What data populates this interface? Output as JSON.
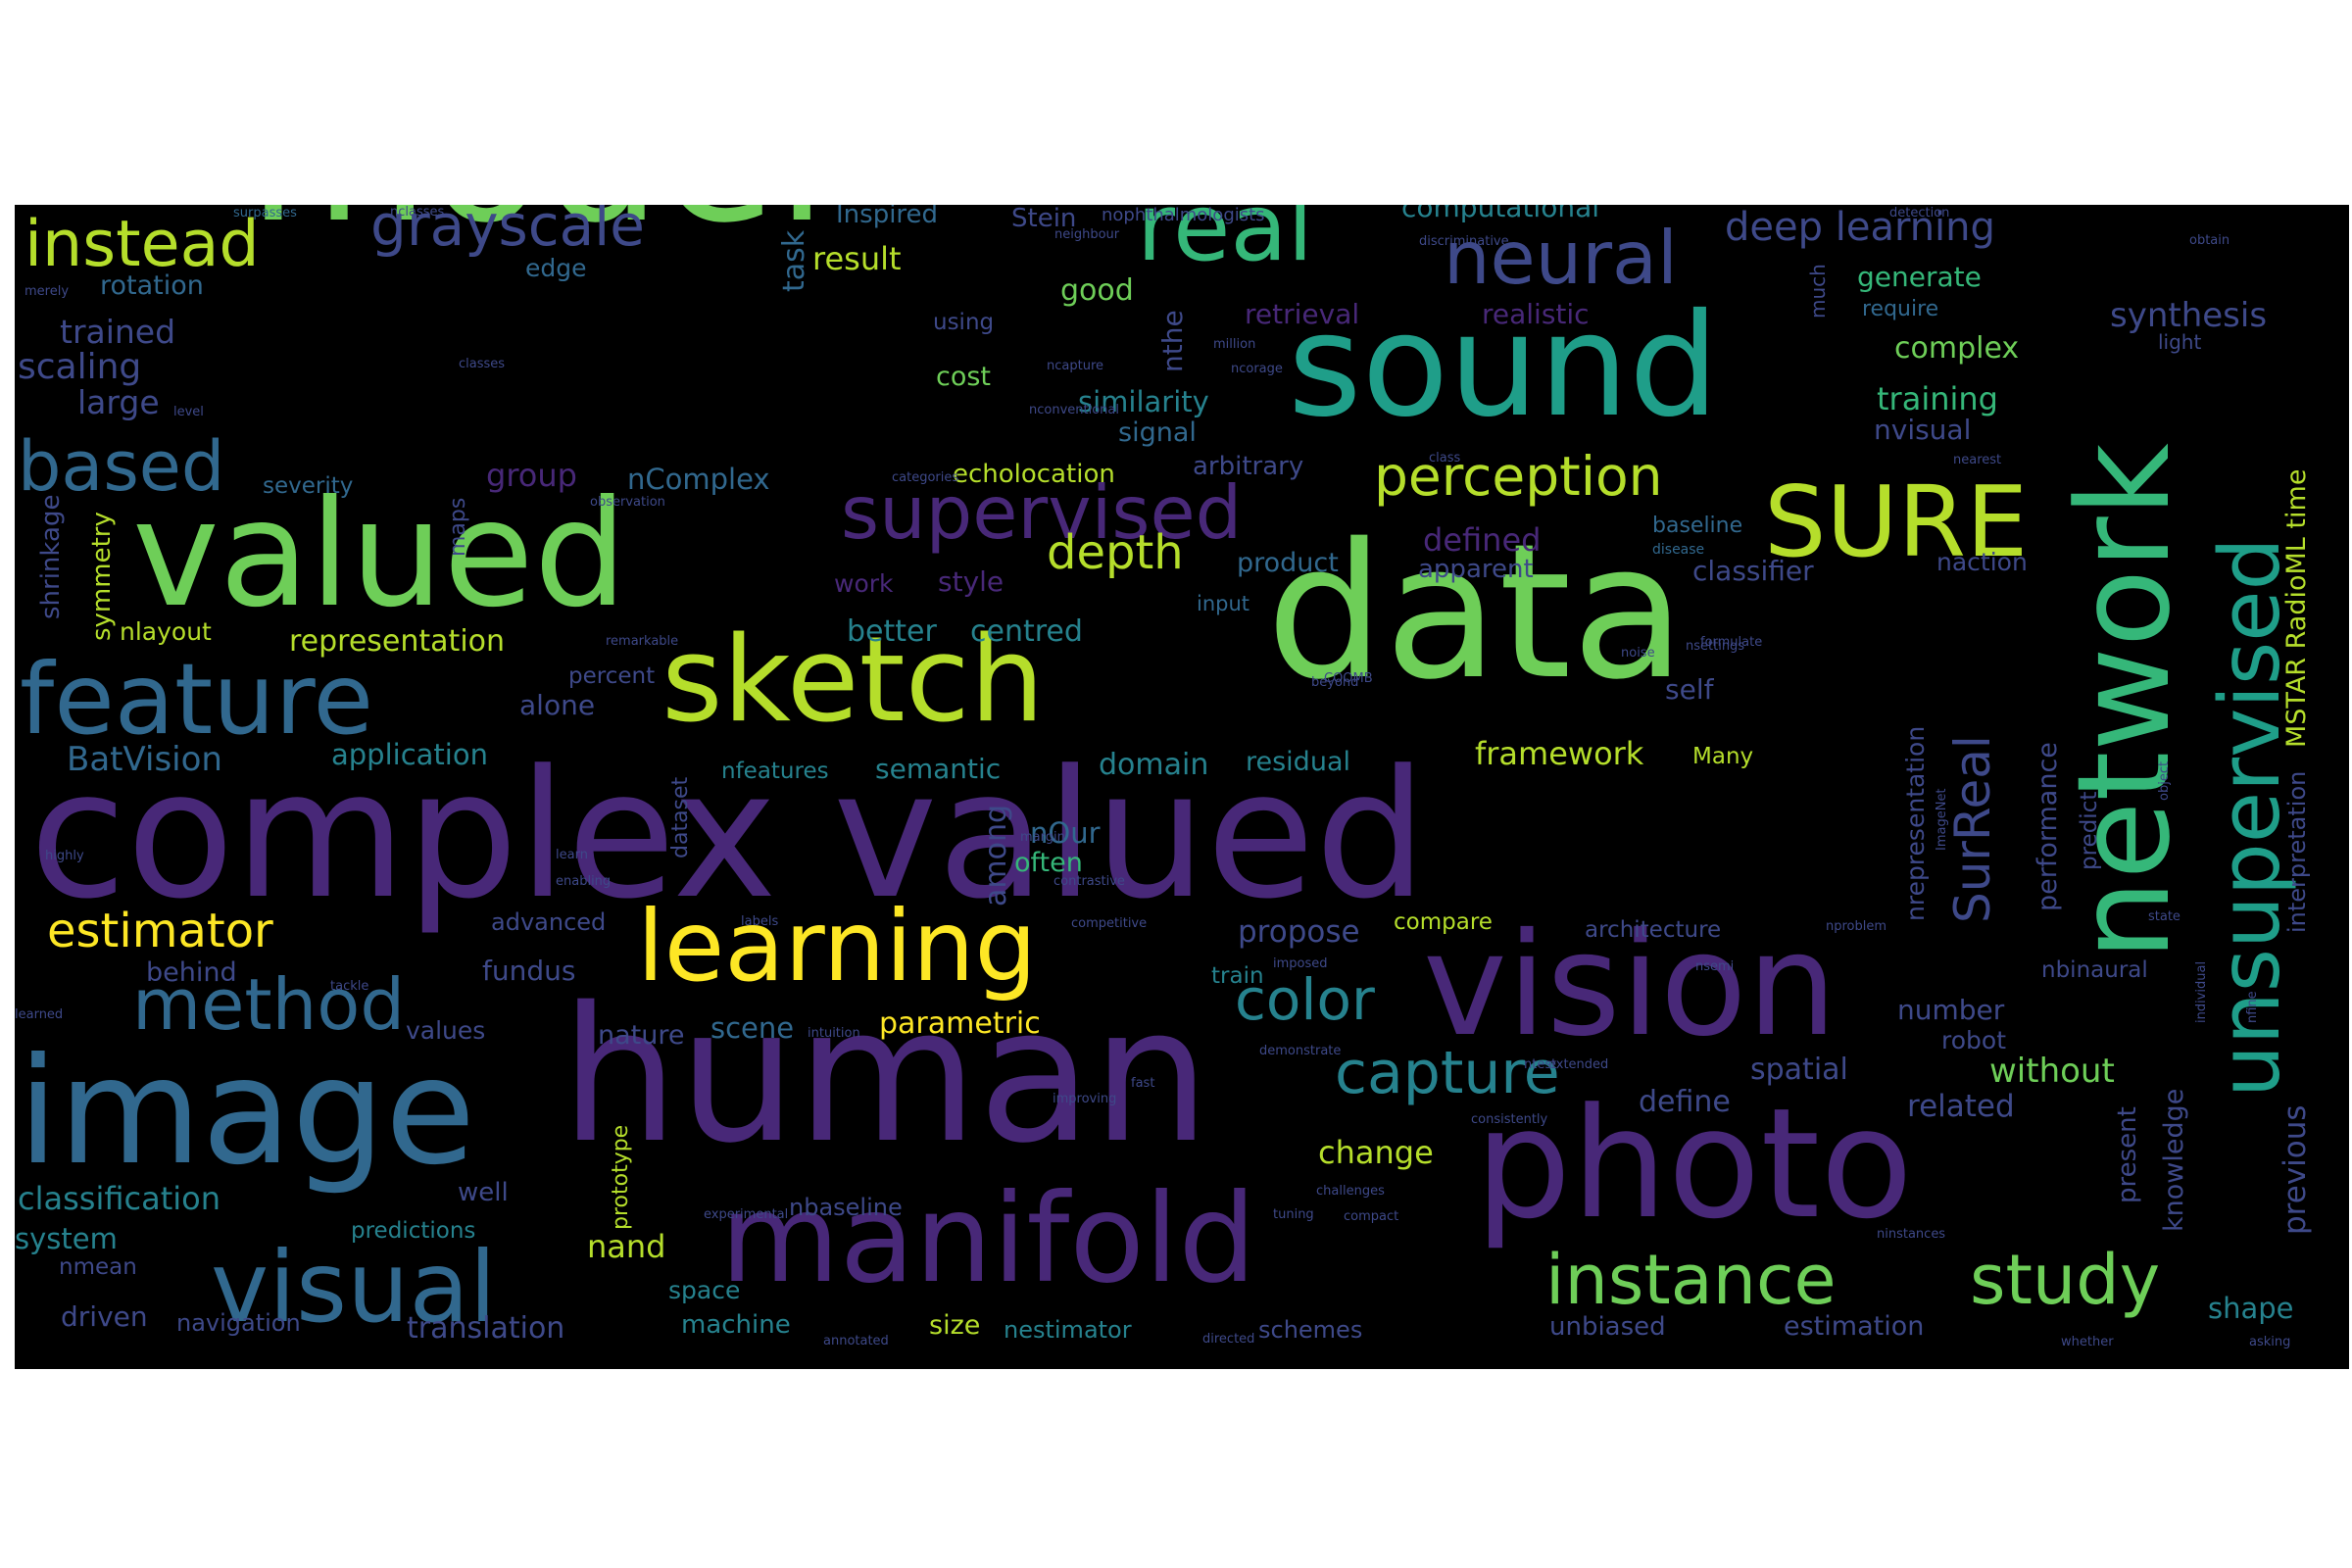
{
  "palette": {
    "bright_yellow": "#fde725",
    "yellow_green": "#b5de2b",
    "green": "#6ece58",
    "mint": "#35b779",
    "teal": "#1f9e89",
    "blue_teal": "#26828e",
    "blue": "#31688e",
    "indigo": "#3e4989",
    "purple": "#482878",
    "dark_purple": "#440154"
  },
  "words": [
    {
      "text": "model",
      "color": "#6ece58"
    },
    {
      "text": "data",
      "color": "#6ece58"
    },
    {
      "text": "complex valued",
      "color": "#482878"
    },
    {
      "text": "human",
      "color": "#482878"
    },
    {
      "text": "image",
      "color": "#31688e"
    },
    {
      "text": "photo",
      "color": "#482878"
    },
    {
      "text": "valued",
      "color": "#6ece58"
    },
    {
      "text": "sound",
      "color": "#1f9e89"
    },
    {
      "text": "sketch",
      "color": "#b5de2b"
    },
    {
      "text": "network",
      "color": "#35b779"
    },
    {
      "text": "vision",
      "color": "#482878"
    },
    {
      "text": "manifold",
      "color": "#482878"
    },
    {
      "text": "unsupervised",
      "color": "#1f9e89"
    },
    {
      "text": "feature",
      "color": "#31688e"
    },
    {
      "text": "learning",
      "color": "#fde725"
    },
    {
      "text": "real",
      "color": "#35b779"
    },
    {
      "text": "SURE",
      "color": "#b5de2b"
    },
    {
      "text": "visual",
      "color": "#31688e"
    },
    {
      "text": "supervised",
      "color": "#482878"
    },
    {
      "text": "instance",
      "color": "#6ece58"
    },
    {
      "text": "study",
      "color": "#6ece58"
    },
    {
      "text": "neural",
      "color": "#3e4989"
    },
    {
      "text": "grayscale",
      "color": "#3e4989"
    },
    {
      "text": "instead",
      "color": "#b5de2b"
    },
    {
      "text": "method",
      "color": "#31688e"
    },
    {
      "text": "capture",
      "color": "#26828e"
    },
    {
      "text": "SurReal",
      "color": "#3e4989"
    },
    {
      "text": "perception",
      "color": "#b5de2b"
    },
    {
      "text": "depth",
      "color": "#b5de2b"
    },
    {
      "text": "color",
      "color": "#26828e"
    },
    {
      "text": "based",
      "color": "#31688e"
    },
    {
      "text": "estimator",
      "color": "#fde725"
    },
    {
      "text": "deep learning",
      "color": "#3e4989"
    },
    {
      "text": "computational",
      "color": "#26828e"
    },
    {
      "text": "similarity",
      "color": "#26828e"
    },
    {
      "text": "representation",
      "color": "#b5de2b"
    },
    {
      "text": "parametric",
      "color": "#fde725"
    },
    {
      "text": "classification",
      "color": "#26828e"
    },
    {
      "text": "trained",
      "color": "#3e4989"
    },
    {
      "text": "scaling",
      "color": "#3e4989"
    },
    {
      "text": "large",
      "color": "#3e4989"
    },
    {
      "text": "rotation",
      "color": "#31688e"
    },
    {
      "text": "edge",
      "color": "#31688e"
    },
    {
      "text": "result",
      "color": "#b5de2b"
    },
    {
      "text": "task",
      "color": "#31688e"
    },
    {
      "text": "Inspired",
      "color": "#31688e"
    },
    {
      "text": "Stein",
      "color": "#3e4989"
    },
    {
      "text": "nophthalmologists",
      "color": "#3e4989"
    },
    {
      "text": "good",
      "color": "#6ece58"
    },
    {
      "text": "nthe",
      "color": "#3e4989"
    },
    {
      "text": "retrieval",
      "color": "#482878"
    },
    {
      "text": "realistic",
      "color": "#482878"
    },
    {
      "text": "much",
      "color": "#3e4989"
    },
    {
      "text": "generate",
      "color": "#35b779"
    },
    {
      "text": "require",
      "color": "#31688e"
    },
    {
      "text": "synthesis",
      "color": "#3e4989"
    },
    {
      "text": "complex",
      "color": "#6ece58"
    },
    {
      "text": "training",
      "color": "#35b779"
    },
    {
      "text": "nvisual",
      "color": "#3e4989"
    },
    {
      "text": "light",
      "color": "#3e4989"
    },
    {
      "text": "MSTAR RadioML time",
      "color": "#b5de2b"
    },
    {
      "text": "interpretation",
      "color": "#3e4989"
    },
    {
      "text": "using",
      "color": "#3e4989"
    },
    {
      "text": "cost",
      "color": "#6ece58"
    },
    {
      "text": "signal",
      "color": "#31688e"
    },
    {
      "text": "arbitrary",
      "color": "#3e4989"
    },
    {
      "text": "echolocation",
      "color": "#b5de2b"
    },
    {
      "text": "group",
      "color": "#482878"
    },
    {
      "text": "nComplex",
      "color": "#31688e"
    },
    {
      "text": "severity",
      "color": "#31688e"
    },
    {
      "text": "defined",
      "color": "#482878"
    },
    {
      "text": "apparent",
      "color": "#3e4989"
    },
    {
      "text": "product",
      "color": "#31688e"
    },
    {
      "text": "baseline",
      "color": "#31688e"
    },
    {
      "text": "disease",
      "color": "#31688e"
    },
    {
      "text": "naction",
      "color": "#3e4989"
    },
    {
      "text": "classifier",
      "color": "#3e4989"
    },
    {
      "text": "work",
      "color": "#482878"
    },
    {
      "text": "style",
      "color": "#482878"
    },
    {
      "text": "input",
      "color": "#31688e"
    },
    {
      "text": "better",
      "color": "#26828e"
    },
    {
      "text": "centred",
      "color": "#26828e"
    },
    {
      "text": "maps",
      "color": "#3e4989"
    },
    {
      "text": "symmetry",
      "color": "#b5de2b"
    },
    {
      "text": "shrinkage",
      "color": "#3e4989"
    },
    {
      "text": "nlayout",
      "color": "#b5de2b"
    },
    {
      "text": "percent",
      "color": "#3e4989"
    },
    {
      "text": "alone",
      "color": "#3e4989"
    },
    {
      "text": "self",
      "color": "#3e4989"
    },
    {
      "text": "nrepresentation",
      "color": "#3e4989"
    },
    {
      "text": "performance",
      "color": "#3e4989"
    },
    {
      "text": "predict",
      "color": "#3e4989"
    },
    {
      "text": "BatVision",
      "color": "#31688e"
    },
    {
      "text": "application",
      "color": "#26828e"
    },
    {
      "text": "nfeatures",
      "color": "#26828e"
    },
    {
      "text": "semantic",
      "color": "#26828e"
    },
    {
      "text": "domain",
      "color": "#26828e"
    },
    {
      "text": "residual",
      "color": "#26828e"
    },
    {
      "text": "framework",
      "color": "#b5de2b"
    },
    {
      "text": "Many",
      "color": "#b5de2b"
    },
    {
      "text": "dataset",
      "color": "#3e4989"
    },
    {
      "text": "among",
      "color": "#3e4989"
    },
    {
      "text": "nOur",
      "color": "#31688e"
    },
    {
      "text": "often",
      "color": "#35b779"
    },
    {
      "text": "advanced",
      "color": "#3e4989"
    },
    {
      "text": "propose",
      "color": "#3e4989"
    },
    {
      "text": "compare",
      "color": "#b5de2b"
    },
    {
      "text": "architecture",
      "color": "#3e4989"
    },
    {
      "text": "behind",
      "color": "#3e4989"
    },
    {
      "text": "fundus",
      "color": "#3e4989"
    },
    {
      "text": "train",
      "color": "#26828e"
    },
    {
      "text": "nbinaural",
      "color": "#3e4989"
    },
    {
      "text": "values",
      "color": "#3e4989"
    },
    {
      "text": "nature",
      "color": "#3e4989"
    },
    {
      "text": "scene",
      "color": "#31688e"
    },
    {
      "text": "number",
      "color": "#3e4989"
    },
    {
      "text": "robot",
      "color": "#3e4989"
    },
    {
      "text": "without",
      "color": "#6ece58"
    },
    {
      "text": "spatial",
      "color": "#3e4989"
    },
    {
      "text": "define",
      "color": "#3e4989"
    },
    {
      "text": "related",
      "color": "#3e4989"
    },
    {
      "text": "knowledge",
      "color": "#3e4989"
    },
    {
      "text": "previous",
      "color": "#3e4989"
    },
    {
      "text": "present",
      "color": "#3e4989"
    },
    {
      "text": "change",
      "color": "#b5de2b"
    },
    {
      "text": "prototype",
      "color": "#b5de2b"
    },
    {
      "text": "well",
      "color": "#3e4989"
    },
    {
      "text": "predictions",
      "color": "#26828e"
    },
    {
      "text": "nbaseline",
      "color": "#3e4989"
    },
    {
      "text": "nand",
      "color": "#b5de2b"
    },
    {
      "text": "system",
      "color": "#26828e"
    },
    {
      "text": "nmean",
      "color": "#3e4989"
    },
    {
      "text": "driven",
      "color": "#3e4989"
    },
    {
      "text": "navigation",
      "color": "#3e4989"
    },
    {
      "text": "translation",
      "color": "#3e4989"
    },
    {
      "text": "space",
      "color": "#26828e"
    },
    {
      "text": "machine",
      "color": "#26828e"
    },
    {
      "text": "size",
      "color": "#b5de2b"
    },
    {
      "text": "nestimator",
      "color": "#26828e"
    },
    {
      "text": "schemes",
      "color": "#3e4989"
    },
    {
      "text": "unbiased",
      "color": "#3e4989"
    },
    {
      "text": "estimation",
      "color": "#3e4989"
    },
    {
      "text": "shape",
      "color": "#26828e"
    },
    {
      "text": "surpasses",
      "color": "#31688e"
    },
    {
      "text": "nclasses",
      "color": "#3e4989"
    },
    {
      "text": "neighbour",
      "color": "#3e4989"
    },
    {
      "text": "discriminative",
      "color": "#3e4989"
    },
    {
      "text": "detection",
      "color": "#3e4989"
    },
    {
      "text": "obtain",
      "color": "#3e4989"
    },
    {
      "text": "merely",
      "color": "#3e4989"
    },
    {
      "text": "classes",
      "color": "#3e4989"
    },
    {
      "text": "level",
      "color": "#3e4989"
    },
    {
      "text": "ncapture",
      "color": "#3e4989"
    },
    {
      "text": "ncorage",
      "color": "#3e4989"
    },
    {
      "text": "million",
      "color": "#3e4989"
    },
    {
      "text": "nconventional",
      "color": "#3e4989"
    },
    {
      "text": "categories",
      "color": "#3e4989"
    },
    {
      "text": "observation",
      "color": "#3e4989"
    },
    {
      "text": "class",
      "color": "#3e4989"
    },
    {
      "text": "nearest",
      "color": "#3e4989"
    },
    {
      "text": "remarkable",
      "color": "#3e4989"
    },
    {
      "text": "formulate",
      "color": "#3e4989"
    },
    {
      "text": "noise",
      "color": "#3e4989"
    },
    {
      "text": "nsettings",
      "color": "#3e4989"
    },
    {
      "text": "beyond",
      "color": "#3e4989"
    },
    {
      "text": "highly",
      "color": "#3e4989"
    },
    {
      "text": "learn",
      "color": "#3e4989"
    },
    {
      "text": "enabling",
      "color": "#3e4989"
    },
    {
      "text": "margin",
      "color": "#3e4989"
    },
    {
      "text": "labels",
      "color": "#3e4989"
    },
    {
      "text": "contrastive",
      "color": "#3e4989"
    },
    {
      "text": "competitive",
      "color": "#3e4989"
    },
    {
      "text": "nproblem",
      "color": "#3e4989"
    },
    {
      "text": "state",
      "color": "#3e4989"
    },
    {
      "text": "learned",
      "color": "#3e4989"
    },
    {
      "text": "tackle",
      "color": "#3e4989"
    },
    {
      "text": "imposed",
      "color": "#3e4989"
    },
    {
      "text": "nsemi",
      "color": "#3e4989"
    },
    {
      "text": "intuition",
      "color": "#3e4989"
    },
    {
      "text": "demonstrate",
      "color": "#3e4989"
    },
    {
      "text": "extended",
      "color": "#3e4989"
    },
    {
      "text": "ntest",
      "color": "#3e4989"
    },
    {
      "text": "improving",
      "color": "#3e4989"
    },
    {
      "text": "fast",
      "color": "#3e4989"
    },
    {
      "text": "consistently",
      "color": "#3e4989"
    },
    {
      "text": "individual",
      "color": "#3e4989"
    },
    {
      "text": "nfine",
      "color": "#3e4989"
    },
    {
      "text": "experimental",
      "color": "#3e4989"
    },
    {
      "text": "challenges",
      "color": "#3e4989"
    },
    {
      "text": "tuning",
      "color": "#3e4989"
    },
    {
      "text": "compact",
      "color": "#3e4989"
    },
    {
      "text": "ninstances",
      "color": "#3e4989"
    },
    {
      "text": "annotated",
      "color": "#3e4989"
    },
    {
      "text": "directed",
      "color": "#3e4989"
    },
    {
      "text": "whether",
      "color": "#3e4989"
    },
    {
      "text": "asking",
      "color": "#3e4989"
    },
    {
      "text": "object",
      "color": "#3e4989"
    },
    {
      "text": "ImageNet",
      "color": "#3e4989"
    },
    {
      "text": "COOMB",
      "color": "#3e4989"
    }
  ]
}
